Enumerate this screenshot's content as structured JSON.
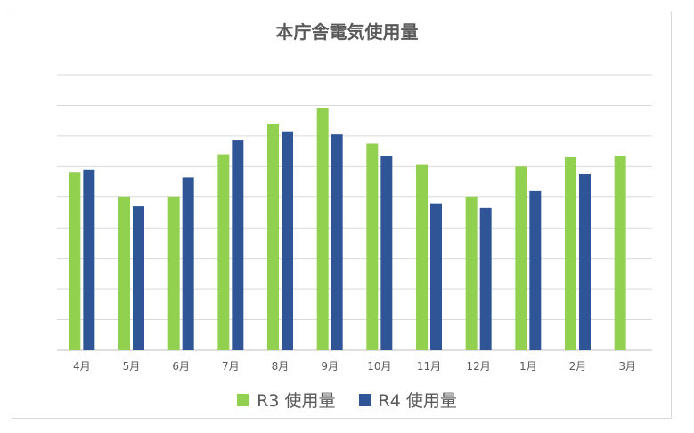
{
  "chart_data": {
    "type": "bar",
    "title": "本庁舎電気使用量",
    "categories": [
      "4月",
      "5月",
      "6月",
      "7月",
      "8月",
      "9月",
      "10月",
      "11月",
      "12月",
      "1月",
      "2月",
      "3月"
    ],
    "series": [
      {
        "name": "R3 使用量",
        "color": "#92d050",
        "values": [
          5.8,
          5.0,
          5.0,
          6.4,
          7.4,
          7.9,
          6.75,
          6.05,
          5.0,
          6.0,
          6.3,
          6.35
        ]
      },
      {
        "name": "R4 使用量",
        "color": "#2f5597",
        "values": [
          5.9,
          4.7,
          5.65,
          6.85,
          7.15,
          7.05,
          6.35,
          4.8,
          4.65,
          5.2,
          5.75,
          null
        ]
      }
    ],
    "ylim": [
      0,
      9
    ],
    "grid": true,
    "xlabel": "",
    "ylabel": "",
    "legend_position": "bottom"
  }
}
